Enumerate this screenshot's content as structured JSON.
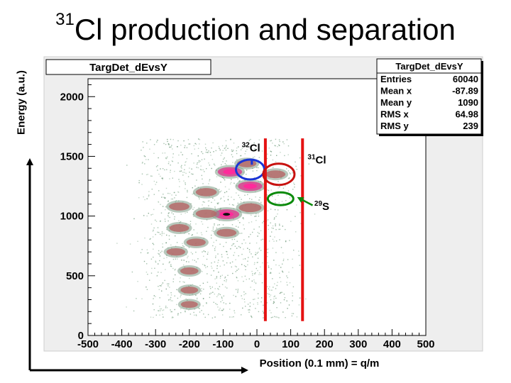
{
  "slide": {
    "title_sup": "31",
    "title_main": "Cl production and separation",
    "y_axis_title": "Energy (a.u.)",
    "x_axis_title": "Position (0.1 mm) = q/m"
  },
  "chart_data": {
    "type": "heatmap",
    "title": "TargDet_dEvsY",
    "xlim": [
      -500,
      500
    ],
    "ylim": [
      0,
      2150
    ],
    "xticks": [
      -500,
      -400,
      -300,
      -200,
      -100,
      0,
      100,
      200,
      300,
      400,
      500
    ],
    "yticks": [
      0,
      500,
      1000,
      1500,
      2000
    ],
    "grid": false,
    "stats": {
      "name": "TargDet_dEvsY",
      "rows": [
        {
          "label": "Entries",
          "value": "60040"
        },
        {
          "label": "Mean x",
          "value": "-87.89"
        },
        {
          "label": "Mean y",
          "value": "1090"
        },
        {
          "label": "RMS x",
          "value": "64.98"
        },
        {
          "label": "RMS y",
          "value": "239"
        }
      ]
    },
    "clusters": [
      {
        "x": -80,
        "y": 1370,
        "intensity": 0.9
      },
      {
        "x": -20,
        "y": 1250,
        "intensity": 0.9
      },
      {
        "x": -90,
        "y": 1015,
        "intensity": 1.0
      },
      {
        "x": -20,
        "y": 1070,
        "intensity": 0.75
      },
      {
        "x": -150,
        "y": 1200,
        "intensity": 0.6
      },
      {
        "x": -150,
        "y": 1020,
        "intensity": 0.6
      },
      {
        "x": -230,
        "y": 1080,
        "intensity": 0.55
      },
      {
        "x": -230,
        "y": 900,
        "intensity": 0.5
      },
      {
        "x": -90,
        "y": 860,
        "intensity": 0.5
      },
      {
        "x": -180,
        "y": 780,
        "intensity": 0.45
      },
      {
        "x": -240,
        "y": 700,
        "intensity": 0.4
      },
      {
        "x": -200,
        "y": 540,
        "intensity": 0.35
      },
      {
        "x": -200,
        "y": 380,
        "intensity": 0.3
      },
      {
        "x": -200,
        "y": 260,
        "intensity": 0.25
      },
      {
        "x": 55,
        "y": 1350,
        "intensity": 0.5
      },
      {
        "x": -30,
        "y": 1440,
        "intensity": 0.45
      }
    ],
    "annotations": [
      {
        "sup": "32",
        "text": "Cl",
        "x": -35,
        "y": 1400,
        "color": "#1a35d6"
      },
      {
        "sup": "31",
        "text": "Cl",
        "x": 60,
        "y": 1345,
        "color": "#c8120f"
      },
      {
        "sup": "29",
        "text": "S",
        "x": 65,
        "y": 1150,
        "color": "#0a8a0a"
      }
    ],
    "cut_lines_x": [
      25,
      135
    ],
    "cut_color": "#e51212"
  }
}
